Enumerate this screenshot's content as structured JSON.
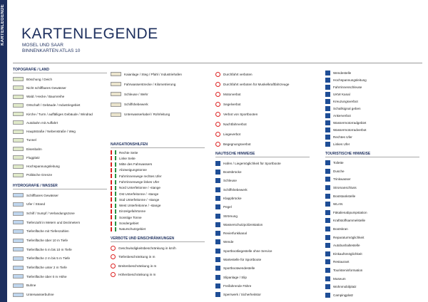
{
  "header": {
    "title": "KARTENLEGENDE",
    "subtitle": [
      "MOSEL UND SAAR",
      "BINNENKARTEN ATLAS 10"
    ]
  },
  "side_label": "KARTENLEGENDE",
  "columns": [
    {
      "sections": [
        {
          "heading": "TOPOGRAFIE / LAND",
          "items": [
            "Böschung / Deich",
            "Nicht schiffbares Gewässer",
            "Wald / Hecke / Baumreihe",
            "Ortschaft / Gebäude / Industriegebiet",
            "Kirche / Turm / auffälliges Gebäude / Windrad",
            "Autobahn mit Auffahrt",
            "Hauptstraße / Nebenstraße / Weg",
            "Tunnel",
            "Eisenbahn",
            "Flugplatz",
            "Hochspannungsleitung",
            "Politische Grenze"
          ]
        },
        {
          "heading": "HYDROGRAFIE / WASSER",
          "items": [
            "Schiffbares Gewässer",
            "Ufer / Strand",
            "Schilf / Sumpf / Verlandungszone",
            "Tiefenzahl in Metern und Dezimetern",
            "Tiefenfläche mit Tiefenzahlen",
            "Tiefenfläche über 10 m Tiefe",
            "Tiefenfläche 5 m bis 10 m Tiefe",
            "Tiefenfläche 2 m bis 5 m Tiefe",
            "Tiefenfläche unter 2 m Tiefe",
            "Tiefenfläche über 0 m Höhe",
            "Buhne",
            "Unterwasserbuhne"
          ]
        }
      ]
    },
    {
      "sections": [
        {
          "items": [
            "Kaianlage / Steg / Pfahl / Industriehafen",
            "Fahrwasserstrecke / Kilometrierung",
            "Schleuse / Wehr",
            "Schiffshebewerk",
            "Unterwasserkabel / Rohrleitung"
          ]
        },
        {
          "heading": "NAVIGATIONSHILFEN",
          "items": [
            "Rechte Seite",
            "Linke Seite",
            "Mitte des Fahrwassers",
            "Abzweigungstonne",
            "Fahrrinnenwege rechtes Ufer",
            "Fahrrinnenwege linkes Ufer",
            "Nord Unterfeitonne / -stange",
            "Ost Unterfeitonne / -stange",
            "Süd Unterfeitonne / -stange",
            "West Unterfeitonne / -stange",
            "Einzelgefahrtonne",
            "Sonstige Tonne",
            "Sondergebiet",
            "Naturschutzgebiet"
          ]
        },
        {
          "heading": "VERBOTE UND EINSCHRÄNKUNGEN",
          "items": [
            "Geschwindigkeitsbeschränkung in km/h",
            "Tiefenbeschränkung in m",
            "Breitenbeschränkung in m",
            "Höhenbeschränkung in m"
          ]
        }
      ]
    },
    {
      "sections": [
        {
          "items": [
            "Durchfahrt verboten",
            "Durchfahrt verboten für Muskelkraftfahrzeuge",
            "Motorverbot",
            "Segelverbot",
            "Verbot von Sportbooten",
            "Nachtfahrverbot",
            "Liegeverbot",
            "Begegnungsverbot"
          ]
        },
        {
          "heading": "NAUTISCHE HINWEISE",
          "items": [
            "Hafen / Liegemöglichkeit für Sportboote",
            "Bootsbrücke",
            "Schleuse",
            "Schiffshebewerk",
            "Klappbrücke",
            "Pegel",
            "Strömung",
            "Wasserschutzpolizeistation",
            "Revierfunkkanal",
            "Wende",
            "Sportbootliegestelle ohne Service",
            "Wartestelle für Sportboote",
            "Sportbootwendestelle",
            "Slipanlage / Slip",
            "Freifahrende Fähre",
            "Sperrwerk / Sicherheitstor"
          ]
        }
      ]
    },
    {
      "sections": [
        {
          "items": [
            "Wendestelle",
            "Hochspannungsleitung",
            "Fahrrinnenschleuse",
            "UKW Kanal",
            "Kreuzungsverbot",
            "Schallsignal geben",
            "Ankerverbot",
            "Wassermotorradgebiet",
            "Wassermotorradverbot",
            "Rechtes Ufer",
            "Linkes Ufer"
          ]
        },
        {
          "heading": "TOURISTISCHE HINWEISE",
          "items": [
            "Toilette",
            "Dusche",
            "Trinkwasser",
            "Stromanschluss",
            "Bootstankstelle",
            "WLAN",
            "Fäkalienabpumpstation",
            "Kraftstoffsammelstelle",
            "Bootskran",
            "Reparaturmöglichkeit",
            "Autobushaltestelle",
            "Einkaufsmöglichkeit",
            "Restaurant",
            "Touristeninformation",
            "Museum",
            "Wohnmobilplatz",
            "Campingplatz"
          ]
        }
      ]
    }
  ]
}
